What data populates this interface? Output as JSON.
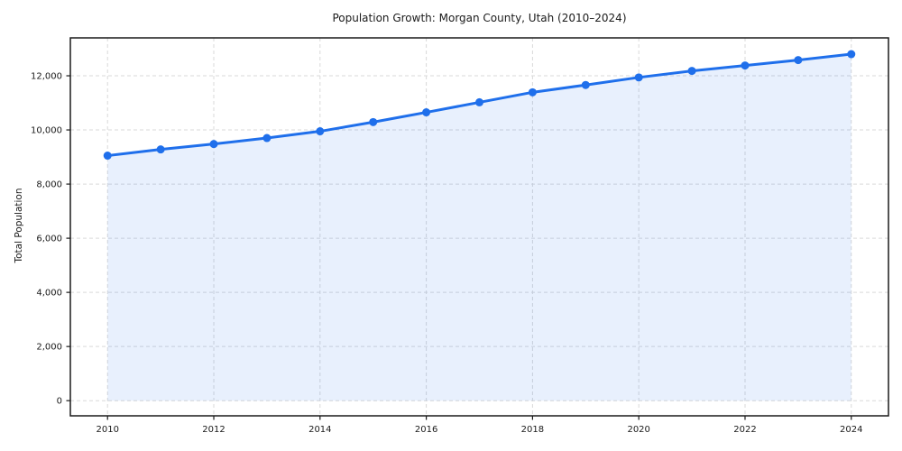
{
  "page": {
    "background": "#ffffff"
  },
  "chart_data": {
    "type": "line",
    "title": "Population Growth: Morgan County, Utah (2010–2024)",
    "xlabel": "",
    "ylabel": "Total Population",
    "x": [
      2010,
      2011,
      2012,
      2013,
      2014,
      2015,
      2016,
      2017,
      2018,
      2019,
      2020,
      2021,
      2022,
      2023,
      2024
    ],
    "series": [
      {
        "name": "Total Population",
        "values": [
          9050,
          9280,
          9480,
          9700,
          9950,
          10290,
          10650,
          11020,
          11390,
          11660,
          11940,
          12180,
          12380,
          12580,
          12800
        ]
      }
    ],
    "x_ticks": [
      2010,
      2012,
      2014,
      2016,
      2018,
      2020,
      2022,
      2024
    ],
    "x_tick_labels": [
      "2010",
      "2012",
      "2014",
      "2016",
      "2018",
      "2020",
      "2022",
      "2024"
    ],
    "y_ticks": [
      0,
      2000,
      4000,
      6000,
      8000,
      10000,
      12000
    ],
    "y_tick_labels": [
      "0",
      "2,000",
      "4,000",
      "6,000",
      "8,000",
      "10,000",
      "12,000"
    ],
    "xlim": [
      2009.3,
      2024.7
    ],
    "ylim": [
      -560,
      13400
    ],
    "grid": true,
    "legend_position": "none",
    "marker": "circle",
    "fill_to_zero": true,
    "style": {
      "line_color": "#1f6feb",
      "marker_color": "#1f6feb",
      "fill_color": "rgba(31,111,235,0.10)",
      "grid_color": "#d9d9d9",
      "spine_color": "#1a1a1a",
      "tick_color": "#1a1a1a",
      "text_color": "#1a1a1a",
      "background": "#ffffff"
    }
  }
}
